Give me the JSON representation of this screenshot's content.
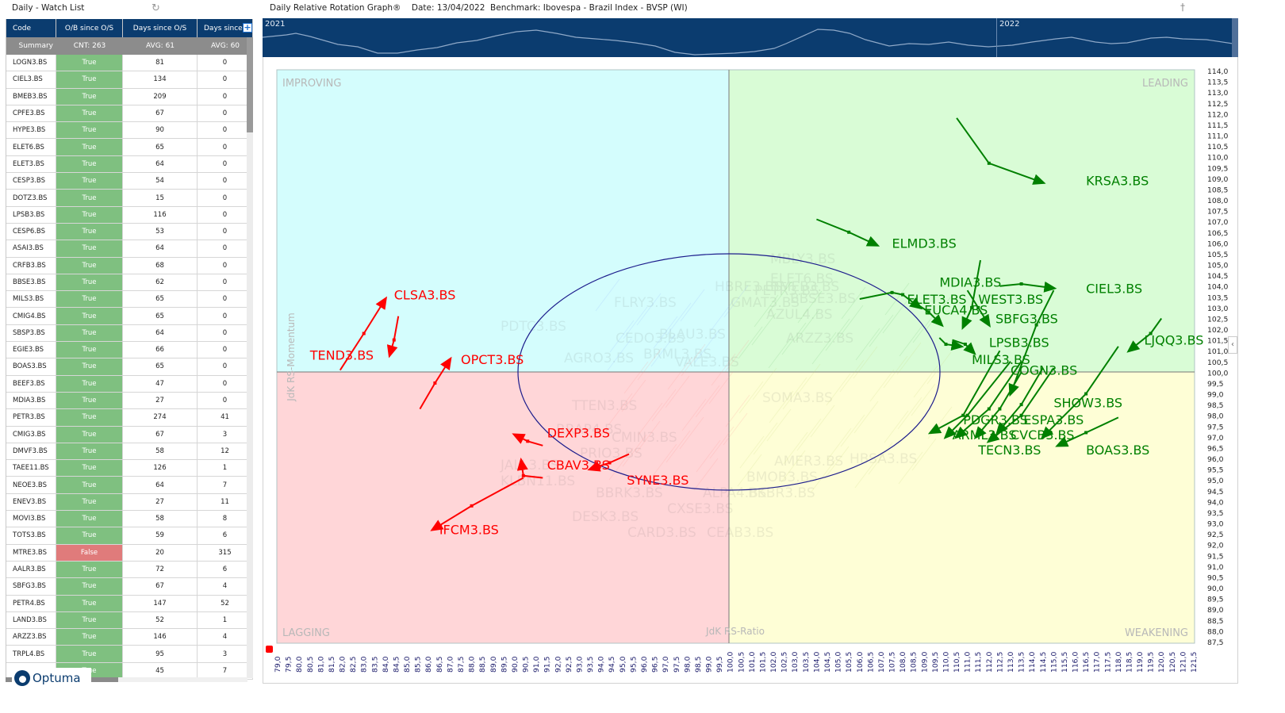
{
  "watchlist": {
    "title": "Daily - Watch List",
    "columns": [
      "Code",
      "O/B since O/S",
      "Days since O/S",
      "Days since"
    ],
    "summary": [
      "Summary",
      "CNT: 263",
      "AVG: 61",
      "AVG: 60"
    ],
    "rows": [
      [
        "LOGN3.BS",
        "True",
        "81",
        "0"
      ],
      [
        "CIEL3.BS",
        "True",
        "134",
        "0"
      ],
      [
        "BMEB3.BS",
        "True",
        "209",
        "0"
      ],
      [
        "CPFE3.BS",
        "True",
        "67",
        "0"
      ],
      [
        "HYPE3.BS",
        "True",
        "90",
        "0"
      ],
      [
        "ELET6.BS",
        "True",
        "65",
        "0"
      ],
      [
        "ELET3.BS",
        "True",
        "64",
        "0"
      ],
      [
        "CESP3.BS",
        "True",
        "54",
        "0"
      ],
      [
        "DOTZ3.BS",
        "True",
        "15",
        "0"
      ],
      [
        "LPSB3.BS",
        "True",
        "116",
        "0"
      ],
      [
        "CESP6.BS",
        "True",
        "53",
        "0"
      ],
      [
        "ASAI3.BS",
        "True",
        "64",
        "0"
      ],
      [
        "CRFB3.BS",
        "True",
        "68",
        "0"
      ],
      [
        "BBSE3.BS",
        "True",
        "62",
        "0"
      ],
      [
        "MILS3.BS",
        "True",
        "65",
        "0"
      ],
      [
        "CMIG4.BS",
        "True",
        "65",
        "0"
      ],
      [
        "SBSP3.BS",
        "True",
        "64",
        "0"
      ],
      [
        "EGIE3.BS",
        "True",
        "66",
        "0"
      ],
      [
        "BOAS3.BS",
        "True",
        "65",
        "0"
      ],
      [
        "BEEF3.BS",
        "True",
        "47",
        "0"
      ],
      [
        "MDIA3.BS",
        "True",
        "27",
        "0"
      ],
      [
        "PETR3.BS",
        "True",
        "274",
        "41"
      ],
      [
        "CMIG3.BS",
        "True",
        "67",
        "3"
      ],
      [
        "DMVF3.BS",
        "True",
        "58",
        "12"
      ],
      [
        "TAEE11.BS",
        "True",
        "126",
        "1"
      ],
      [
        "NEOE3.BS",
        "True",
        "64",
        "7"
      ],
      [
        "ENEV3.BS",
        "True",
        "27",
        "11"
      ],
      [
        "MOVI3.BS",
        "True",
        "58",
        "8"
      ],
      [
        "TOTS3.BS",
        "True",
        "59",
        "6"
      ],
      [
        "MTRE3.BS",
        "False",
        "20",
        "315"
      ],
      [
        "AALR3.BS",
        "True",
        "72",
        "6"
      ],
      [
        "SBFG3.BS",
        "True",
        "67",
        "4"
      ],
      [
        "PETR4.BS",
        "True",
        "147",
        "52"
      ],
      [
        "LAND3.BS",
        "True",
        "52",
        "1"
      ],
      [
        "ARZZ3.BS",
        "True",
        "146",
        "4"
      ],
      [
        "TRPL4.BS",
        "True",
        "95",
        "3"
      ],
      [
        "",
        "True",
        "45",
        "7"
      ]
    ],
    "logo": "Optuma"
  },
  "rrg": {
    "title": "Daily Relative Rotation Graph®    Date: 13/04/2022  Benchmark: Ibovespa - Brazil Index - BVSP (WI)",
    "timeline_labels": [
      "2021",
      "2022"
    ]
  },
  "chart_data": {
    "type": "scatter",
    "title": "Daily Relative Rotation Graph®",
    "date": "13/04/2022",
    "benchmark": "Ibovespa - Brazil Index - BVSP (WI)",
    "xlabel": "JdK RS-Ratio",
    "ylabel": "JdK RS-Momentum",
    "xlim": [
      79.0,
      121.5
    ],
    "ylim": [
      87.5,
      114.0
    ],
    "x_ticks": [
      "79,0",
      "79,5",
      "80,0",
      "80,5",
      "81,0",
      "81,5",
      "82,0",
      "82,5",
      "83,0",
      "83,5",
      "84,0",
      "84,5",
      "85,0",
      "85,5",
      "86,0",
      "86,5",
      "87,0",
      "87,5",
      "88,0",
      "88,5",
      "89,0",
      "89,5",
      "90,0",
      "90,5",
      "91,0",
      "91,5",
      "92,0",
      "92,5",
      "93,0",
      "93,5",
      "94,0",
      "94,5",
      "95,0",
      "95,5",
      "96,0",
      "96,5",
      "97,0",
      "97,5",
      "98,0",
      "98,5",
      "99,0",
      "99,5",
      "100,0",
      "100,5",
      "101,0",
      "101,5",
      "102,0",
      "102,5",
      "103,0",
      "103,5",
      "104,0",
      "104,5",
      "105,0",
      "105,5",
      "106,0",
      "106,5",
      "107,0",
      "107,5",
      "108,0",
      "108,5",
      "109,0",
      "109,5",
      "110,0",
      "110,5",
      "111,0",
      "111,5",
      "112,0",
      "112,5",
      "113,0",
      "113,5",
      "114,0",
      "114,5",
      "115,0",
      "115,5",
      "116,0",
      "116,5",
      "117,0",
      "117,5",
      "118,0",
      "118,5",
      "119,0",
      "119,5",
      "120,0",
      "120,5",
      "121,0",
      "121,5"
    ],
    "y_ticks": [
      "114,0",
      "113,5",
      "113,0",
      "112,5",
      "112,0",
      "111,5",
      "111,0",
      "110,5",
      "110,0",
      "109,5",
      "109,0",
      "108,5",
      "108,0",
      "107,5",
      "107,0",
      "106,5",
      "106,0",
      "105,5",
      "105,0",
      "104,5",
      "104,0",
      "103,5",
      "103,0",
      "102,5",
      "102,0",
      "101,5",
      "101,0",
      "100,5",
      "100,0",
      "99,5",
      "99,0",
      "98,5",
      "98,0",
      "97,5",
      "97,0",
      "96,5",
      "96,0",
      "95,5",
      "95,0",
      "94,5",
      "94,0",
      "93,5",
      "93,0",
      "92,5",
      "92,0",
      "91,5",
      "91,0",
      "90,5",
      "90,0",
      "89,5",
      "89,0",
      "88,5",
      "88,0",
      "87,5"
    ],
    "quadrants": {
      "top_left": {
        "label": "IMPROVING",
        "color": "#d4fdfd"
      },
      "top_right": {
        "label": "LEADING",
        "color": "#d9fcd6"
      },
      "bottom_left": {
        "label": "LAGGING",
        "color": "#ffd6d8"
      },
      "bottom_right": {
        "label": "WEAKENING",
        "color": "#fefed6"
      }
    },
    "center": [
      100.0,
      100.0
    ],
    "grid": false,
    "series": [
      {
        "name": "KRSA3.BS",
        "color": "#008000",
        "tail": [
          [
            110.5,
            111.8
          ],
          [
            112.0,
            109.7
          ],
          [
            114.5,
            108.8
          ]
        ],
        "label_pos": [
          116.5,
          108.9
        ]
      },
      {
        "name": "ELMD3.BS",
        "color": "#008000",
        "tail": [
          [
            104.0,
            107.1
          ],
          [
            105.5,
            106.5
          ],
          [
            106.8,
            105.9
          ]
        ],
        "label_pos": [
          107.5,
          106.0
        ]
      },
      {
        "name": "MDIA3.BS",
        "color": "#008000",
        "tail": [
          [
            111.6,
            105.2
          ],
          [
            111.2,
            103.0
          ],
          [
            110.8,
            102.1
          ]
        ],
        "label_pos": [
          109.7,
          104.2
        ]
      },
      {
        "name": "CIEL3.BS",
        "color": "#008000",
        "tail": [
          [
            112.5,
            104.0
          ],
          [
            113.5,
            104.1
          ],
          [
            115.0,
            103.9
          ]
        ],
        "label_pos": [
          116.5,
          103.9
        ]
      },
      {
        "name": "ELET3.BS",
        "color": "#008000",
        "tail": [
          [
            106.0,
            103.4
          ],
          [
            107.5,
            103.7
          ],
          [
            108.0,
            103.6
          ],
          [
            108.8,
            103.0
          ]
        ],
        "label_pos": [
          108.2,
          103.4
        ]
      },
      {
        "name": "WEST3.BS",
        "color": "#008000",
        "tail": [
          [
            115.0,
            103.8
          ],
          [
            114.2,
            102.2
          ],
          [
            113.0,
            99.0
          ]
        ],
        "label_pos": [
          111.5,
          103.4
        ]
      },
      {
        "name": "EUCA4.BS",
        "color": "#008000",
        "tail": [
          [
            108.6,
            103.2
          ],
          [
            109.2,
            102.8
          ],
          [
            109.8,
            102.2
          ]
        ],
        "label_pos": [
          109.0,
          102.9
        ]
      },
      {
        "name": "SBFG3.BS",
        "color": "#008000",
        "tail": [
          [
            111.0,
            103.8
          ],
          [
            111.5,
            103.0
          ],
          [
            112.0,
            102.2
          ]
        ],
        "label_pos": [
          112.3,
          102.5
        ]
      },
      {
        "name": "LPSB3.BS",
        "color": "#008000",
        "tail": [
          [
            110.3,
            101.5
          ],
          [
            110.9,
            101.3
          ],
          [
            111.3,
            100.9
          ]
        ],
        "label_pos": [
          112.0,
          101.4
        ]
      },
      {
        "name": "MILS3.BS",
        "color": "#008000",
        "tail": [
          [
            109.7,
            101.6
          ],
          [
            110.0,
            101.3
          ],
          [
            110.7,
            101.2
          ]
        ],
        "label_pos": [
          111.2,
          100.6
        ]
      },
      {
        "name": "LJQQ3.BS",
        "color": "#008000",
        "tail": [
          [
            120.0,
            102.5
          ],
          [
            119.5,
            101.8
          ],
          [
            118.5,
            101.0
          ]
        ],
        "label_pos": [
          119.2,
          101.5
        ]
      },
      {
        "name": "COGN3.BS",
        "color": "#008000",
        "tail": [
          [
            113.5,
            100.5
          ],
          [
            112.0,
            98.3
          ],
          [
            110.5,
            97.0
          ]
        ],
        "label_pos": [
          113.0,
          100.1
        ]
      },
      {
        "name": "SHOW3.BS",
        "color": "#008000",
        "tail": [
          [
            118.0,
            101.2
          ],
          [
            116.5,
            99.0
          ],
          [
            114.5,
            97.0
          ]
        ],
        "label_pos": [
          115.0,
          98.6
        ]
      },
      {
        "name": "PDGR3.BS",
        "color": "#008000",
        "tail": [
          [
            112.5,
            101.0
          ],
          [
            110.8,
            98.0
          ],
          [
            109.3,
            97.2
          ]
        ],
        "label_pos": [
          110.8,
          97.8
        ]
      },
      {
        "name": "ESPA3.BS",
        "color": "#008000",
        "tail": [
          [
            115.0,
            100.2
          ],
          [
            113.5,
            98.0
          ],
          [
            112.0,
            96.8
          ]
        ],
        "label_pos": [
          113.6,
          97.8
        ]
      },
      {
        "name": "ARML3.BS",
        "color": "#008000",
        "tail": [
          [
            113.0,
            100.5
          ],
          [
            111.0,
            98.0
          ],
          [
            110.0,
            97.0
          ]
        ],
        "label_pos": [
          110.3,
          97.1
        ]
      },
      {
        "name": "CVCB3.BS",
        "color": "#008000",
        "tail": [
          [
            114.5,
            100.2
          ],
          [
            113.5,
            98.5
          ],
          [
            112.4,
            97.2
          ]
        ],
        "label_pos": [
          113.0,
          97.1
        ]
      },
      {
        "name": "TECN3.BS",
        "color": "#008000",
        "tail": [
          [
            113.5,
            100.0
          ],
          [
            112.5,
            98.3
          ],
          [
            111.4,
            97.0
          ]
        ],
        "label_pos": [
          111.5,
          96.4
        ]
      },
      {
        "name": "BOAS3.BS",
        "color": "#008000",
        "tail": [
          [
            118.0,
            97.9
          ],
          [
            116.5,
            97.2
          ],
          [
            115.2,
            96.6
          ]
        ],
        "label_pos": [
          116.5,
          96.4
        ]
      },
      {
        "name": "CLSA3.BS",
        "color": "#ff0000",
        "tail": [
          [
            81.9,
            100.1
          ],
          [
            83.0,
            101.8
          ],
          [
            84.0,
            103.4
          ]
        ],
        "label_pos": [
          84.4,
          103.6
        ]
      },
      {
        "name": "TEND3.BS",
        "color": "#ff0000",
        "tail": [
          [
            84.6,
            102.6
          ],
          [
            84.4,
            101.5
          ],
          [
            84.2,
            100.8
          ]
        ],
        "label_pos": [
          80.5,
          100.8
        ]
      },
      {
        "name": "OPCT3.BS",
        "color": "#ff0000",
        "tail": [
          [
            85.6,
            98.3
          ],
          [
            86.3,
            99.5
          ],
          [
            87.0,
            100.6
          ]
        ],
        "label_pos": [
          87.5,
          100.6
        ]
      },
      {
        "name": "DEXP3.BS",
        "color": "#ff0000",
        "tail": [
          [
            91.3,
            96.6
          ],
          [
            90.6,
            96.8
          ],
          [
            90.0,
            97.1
          ]
        ],
        "label_pos": [
          91.5,
          97.2
        ]
      },
      {
        "name": "CBAV3.BS",
        "color": "#ff0000",
        "tail": [
          [
            91.3,
            95.1
          ],
          [
            90.4,
            95.2
          ],
          [
            90.3,
            95.9
          ]
        ],
        "label_pos": [
          91.5,
          95.7
        ]
      },
      {
        "name": "SYNE3.BS",
        "color": "#ff0000",
        "tail": [
          [
            95.3,
            96.2
          ],
          [
            94.4,
            95.8
          ],
          [
            93.5,
            95.5
          ]
        ],
        "label_pos": [
          95.2,
          95.0
        ]
      },
      {
        "name": "IFCM3.BS",
        "color": "#ff0000",
        "tail": [
          [
            90.4,
            95.1
          ],
          [
            88.0,
            93.8
          ],
          [
            86.2,
            92.7
          ]
        ],
        "label_pos": [
          86.5,
          92.7
        ]
      }
    ]
  }
}
